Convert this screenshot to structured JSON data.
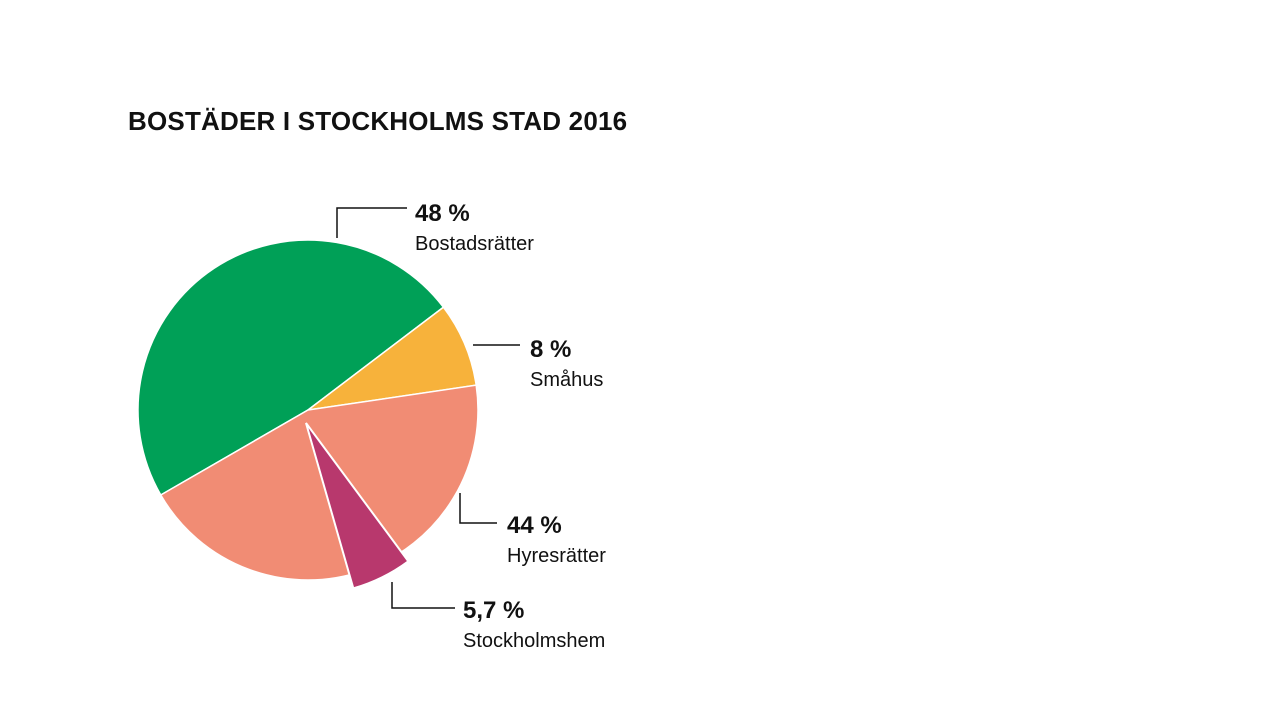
{
  "chart_data": {
    "type": "pie",
    "title": "BOSTÄDER I STOCKHOLMS STAD 2016",
    "slices": [
      {
        "name": "Bostadsrätter",
        "label": "48 %",
        "value": 48,
        "color": "#00a057"
      },
      {
        "name": "Småhus",
        "label": "8 %",
        "value": 8,
        "color": "#f7b23b"
      },
      {
        "name": "Hyresrätter",
        "label": "44 %",
        "value": 44,
        "color": "#f18c74"
      },
      {
        "name": "Stockholmshem",
        "label": "5,7 %",
        "value": 5.7,
        "color": "#b8386d",
        "subset_of": "Hyresrätter",
        "exploded": true
      }
    ]
  }
}
